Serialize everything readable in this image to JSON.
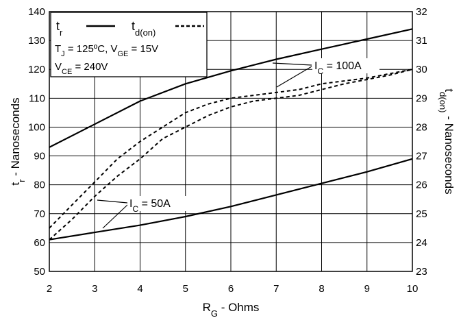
{
  "chart_data": {
    "type": "line",
    "xlabel": {
      "main": "R",
      "sub": "G",
      "rest": " - Ohms"
    },
    "ylabel_left": {
      "main": "t",
      "sub": "r",
      "rest": " - Nanoseconds"
    },
    "ylabel_right": {
      "main": "t",
      "sub": "d(on)",
      "rest": " - Nanoseconds"
    },
    "xlim": [
      2,
      10
    ],
    "ylim_left": [
      50,
      140
    ],
    "ylim_right": [
      23,
      32
    ],
    "x_ticks": [
      "2",
      "3",
      "4",
      "5",
      "6",
      "7",
      "8",
      "9",
      "10"
    ],
    "y_ticks_left": [
      "50",
      "60",
      "70",
      "80",
      "90",
      "100",
      "110",
      "120",
      "130",
      "140"
    ],
    "y_ticks_right": [
      "23",
      "24",
      "25",
      "26",
      "27",
      "28",
      "29",
      "30",
      "31",
      "32"
    ],
    "grid": true,
    "legend": {
      "position": "top-left",
      "entries": [
        {
          "main": "t",
          "sub": "r",
          "style": "solid"
        },
        {
          "main": "t",
          "sub": "d(on)",
          "style": "dashed"
        }
      ],
      "conditions": [
        [
          {
            "t": "T"
          },
          {
            "t": "J",
            "sub": true
          },
          {
            "t": " = 125ºC,  V"
          },
          {
            "t": "GE",
            "sub": true
          },
          {
            "t": " = 15V"
          }
        ],
        [
          {
            "t": "V"
          },
          {
            "t": "CE",
            "sub": true
          },
          {
            "t": " = 240V"
          }
        ]
      ]
    },
    "annotations": [
      {
        "main": "I",
        "sub": "C",
        "rest": " = 100A"
      },
      {
        "main": "I",
        "sub": "C",
        "rest": " = 50A"
      }
    ],
    "series": [
      {
        "param": "tr",
        "ic": "100A",
        "axis": "left",
        "style": "solid",
        "x": [
          2,
          3,
          4,
          5,
          6,
          7,
          8,
          9,
          10
        ],
        "y": [
          93,
          101,
          109,
          115,
          119.5,
          123.5,
          127,
          130.5,
          134
        ]
      },
      {
        "param": "tr",
        "ic": "50A",
        "axis": "left",
        "style": "solid",
        "x": [
          2,
          3,
          4,
          5,
          6,
          7,
          8,
          9,
          10
        ],
        "y": [
          61,
          63.5,
          66,
          69,
          72.5,
          76.5,
          80.5,
          84.5,
          89
        ]
      },
      {
        "param": "td(on)",
        "ic": "100A",
        "axis": "right",
        "style": "dashed",
        "x": [
          2,
          2.5,
          3,
          3.5,
          4,
          4.5,
          5,
          5.5,
          6,
          6.5,
          7,
          7.5,
          8,
          8.5,
          9,
          9.5,
          10
        ],
        "y": [
          24.5,
          25.3,
          26.1,
          26.9,
          27.5,
          28.0,
          28.5,
          28.8,
          29.0,
          29.1,
          29.2,
          29.3,
          29.5,
          29.6,
          29.7,
          29.85,
          30.0
        ]
      },
      {
        "param": "td(on)",
        "ic": "50A",
        "axis": "right",
        "style": "dashed",
        "x": [
          2,
          2.5,
          3,
          3.5,
          4,
          4.5,
          5,
          5.5,
          6,
          6.5,
          7,
          7.5,
          8,
          8.5,
          9,
          9.5,
          10
        ],
        "y": [
          24.1,
          24.8,
          25.6,
          26.3,
          26.9,
          27.6,
          28.0,
          28.4,
          28.7,
          28.9,
          29.0,
          29.1,
          29.3,
          29.5,
          29.65,
          29.8,
          30.0
        ]
      }
    ]
  }
}
